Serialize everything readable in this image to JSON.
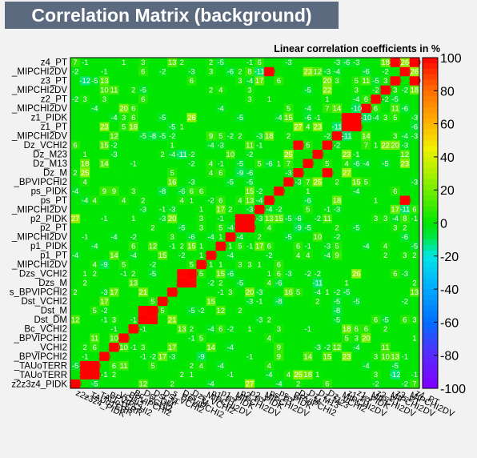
{
  "title": "Correlation Matrix (background)",
  "subtitle": "Linear correlation coefficients in %",
  "chart_data": {
    "type": "heatmap",
    "title": "Correlation Matrix (background)",
    "zlabel": "Linear correlation coefficients in %",
    "zlim": [
      -100,
      100
    ],
    "colorbar_ticks": [
      100,
      80,
      60,
      40,
      20,
      0,
      -20,
      -40,
      -60,
      -80,
      -100
    ],
    "colors": {
      "neutral": "#00e600",
      "max": "#ff0000",
      "min": "#7f00ff"
    },
    "variables": [
      "z2z3z4_PIDK",
      "_TAUoTERR",
      "_TAUoTERR",
      "_BPVIPCHI2",
      "_VCHI2",
      "_BPVIPCHI2",
      "Bc_VCHI2",
      "Dst_DM",
      "Dst_M",
      "Dst_VCHI2",
      "s_BPVIPCHI2",
      "Dzs_M",
      "Dzs_VCHI2",
      "_MIPCHI2DV",
      "p1_PT",
      "p1_PIDK",
      "_MIPCHI2DV",
      "p2_PT",
      "p2_PIDK",
      "_MIPCHI2DV",
      "ps_PT",
      "ps_PIDK",
      "_BPVIPCHI2",
      "Dz_M",
      "Dz_M13",
      "Dz_M23",
      "Dz_VCHI2",
      "_MIPCHI2DV",
      "z1_PT",
      "z1_PIDK",
      "_MIPCHI2DV",
      "z2_PT",
      "_MIPCHI2DV",
      "z3_PT",
      "_MIPCHI2DV",
      "z4_PT"
    ],
    "x_tick_labels": [
      "z2z3z4_PIDK",
      "_TAUoTERR",
      "_TAUoTERR",
      "_BPVIPCHI2",
      "_VCHI2",
      "_BPVIPCHI2",
      "Bc_VCHI2",
      "Dst_DM",
      "Dst_M",
      "Dst_VCHI2",
      "s_BPVIPCHI2",
      "Dzs_M",
      "Dzs_VCHI2",
      "_MIPCHI2DV",
      "p1_PT",
      "p1_PIDK",
      "_MIPCHI2DV",
      "p2_PT",
      "p2_PIDK",
      "_MIPCHI2DV",
      "ps_PT",
      "ps_PIDK",
      "_BPVIPCHI2",
      "Dz_M",
      "Dz_M13",
      "Dz_M23",
      "Dz_VCHI2",
      "_MIPCHI2DV",
      "z1_PT",
      "z1_PIDK",
      "_MIPCHI2DV",
      "z2_PT",
      "_MIPCHI2DV",
      "z3_PT",
      "_MIPCHI2DV",
      "z4_PT"
    ],
    "notable_correlations": [
      {
        "a": "Dst_DM",
        "b": "Dst_M",
        "value": 99
      },
      {
        "a": "Dzs_M",
        "b": "Dzs_VCHI2",
        "value": 99
      },
      {
        "a": "Dz_M",
        "b": "Dz_VCHI2",
        "value": 100
      },
      {
        "a": "_TAUoTERR",
        "b": "_TAUoTERR",
        "value": 100
      },
      {
        "a": "z1_PT",
        "b": "z1_PIDK",
        "value": 100
      },
      {
        "a": "z3_PT",
        "b": "z4_PT",
        "value": 100
      },
      {
        "a": "ps_PT",
        "b": "_MIPCHI2DV",
        "value": 100
      },
      {
        "a": "p2_PT",
        "b": "p2_PIDK",
        "value": 100
      }
    ]
  }
}
